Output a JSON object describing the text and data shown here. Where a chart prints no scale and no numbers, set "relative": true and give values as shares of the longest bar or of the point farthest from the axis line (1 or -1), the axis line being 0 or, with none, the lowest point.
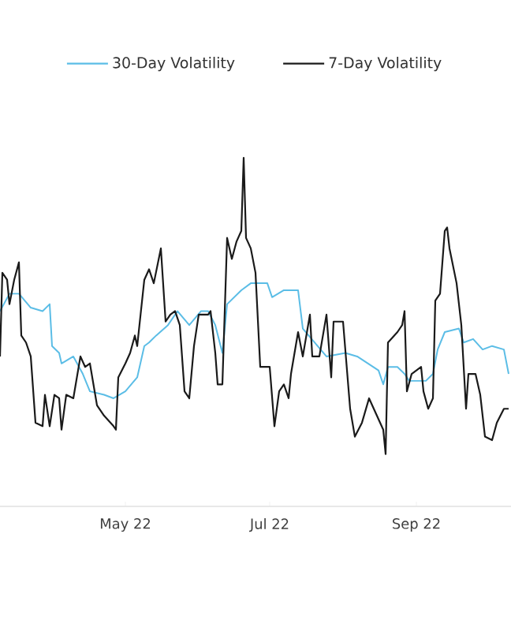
{
  "chart_data": {
    "type": "line",
    "relative": true,
    "legend": "top",
    "xlim": [
      "2022-03-09",
      "2022-10-11"
    ],
    "xticks": [
      {
        "value": "2022-05-01",
        "label": "May 22"
      },
      {
        "value": "2022-07-01",
        "label": "Jul 22"
      },
      {
        "value": "2022-09-01",
        "label": "Sep 22"
      }
    ],
    "series": [
      {
        "name": "30-Day Volatility",
        "color": "#5bbde6",
        "x": [
          "2022-03-09",
          "2022-03-13",
          "2022-03-17",
          "2022-03-22",
          "2022-03-27",
          "2022-03-30",
          "2022-03-31",
          "2022-04-03",
          "2022-04-04",
          "2022-04-09",
          "2022-04-13",
          "2022-04-16",
          "2022-04-22",
          "2022-04-26",
          "2022-05-01",
          "2022-05-06",
          "2022-05-09",
          "2022-05-11",
          "2022-05-14",
          "2022-05-19",
          "2022-05-23",
          "2022-05-28",
          "2022-06-02",
          "2022-06-05",
          "2022-06-08",
          "2022-06-11",
          "2022-06-13",
          "2022-06-19",
          "2022-06-23",
          "2022-06-30",
          "2022-07-02",
          "2022-07-07",
          "2022-07-13",
          "2022-07-15",
          "2022-07-20",
          "2022-07-25",
          "2022-08-02",
          "2022-08-07",
          "2022-08-16",
          "2022-08-18",
          "2022-08-20",
          "2022-08-24",
          "2022-08-27",
          "2022-08-29",
          "2022-09-05",
          "2022-09-08",
          "2022-09-10",
          "2022-09-13",
          "2022-09-19",
          "2022-09-21",
          "2022-09-25",
          "2022-09-29",
          "2022-10-03",
          "2022-10-08",
          "2022-10-10"
        ],
        "values": [
          0.56,
          0.61,
          0.61,
          0.57,
          0.56,
          0.58,
          0.46,
          0.44,
          0.41,
          0.43,
          0.38,
          0.33,
          0.32,
          0.31,
          0.33,
          0.37,
          0.46,
          0.47,
          0.49,
          0.52,
          0.56,
          0.52,
          0.56,
          0.56,
          0.52,
          0.44,
          0.58,
          0.62,
          0.64,
          0.64,
          0.6,
          0.62,
          0.62,
          0.51,
          0.47,
          0.43,
          0.44,
          0.43,
          0.39,
          0.35,
          0.4,
          0.4,
          0.38,
          0.36,
          0.36,
          0.38,
          0.45,
          0.5,
          0.51,
          0.47,
          0.48,
          0.45,
          0.46,
          0.45,
          0.38
        ]
      },
      {
        "name": "7-Day Volatility",
        "color": "#1a1a1a",
        "x": [
          "2022-03-09",
          "2022-03-10",
          "2022-03-12",
          "2022-03-13",
          "2022-03-15",
          "2022-03-17",
          "2022-03-18",
          "2022-03-20",
          "2022-03-22",
          "2022-03-24",
          "2022-03-27",
          "2022-03-28",
          "2022-03-30",
          "2022-04-01",
          "2022-04-03",
          "2022-04-04",
          "2022-04-06",
          "2022-04-09",
          "2022-04-12",
          "2022-04-14",
          "2022-04-16",
          "2022-04-19",
          "2022-04-22",
          "2022-04-26",
          "2022-04-27",
          "2022-04-28",
          "2022-05-01",
          "2022-05-03",
          "2022-05-05",
          "2022-05-06",
          "2022-05-09",
          "2022-05-11",
          "2022-05-13",
          "2022-05-16",
          "2022-05-18",
          "2022-05-20",
          "2022-05-22",
          "2022-05-24",
          "2022-05-26",
          "2022-05-28",
          "2022-05-30",
          "2022-06-01",
          "2022-06-05",
          "2022-06-06",
          "2022-06-08",
          "2022-06-09",
          "2022-06-11",
          "2022-06-13",
          "2022-06-15",
          "2022-06-17",
          "2022-06-19",
          "2022-06-20",
          "2022-06-21",
          "2022-06-23",
          "2022-06-25",
          "2022-06-27",
          "2022-07-01",
          "2022-07-03",
          "2022-07-05",
          "2022-07-07",
          "2022-07-09",
          "2022-07-10",
          "2022-07-13",
          "2022-07-15",
          "2022-07-18",
          "2022-07-19",
          "2022-07-22",
          "2022-07-25",
          "2022-07-27",
          "2022-07-28",
          "2022-08-01",
          "2022-08-04",
          "2022-08-06",
          "2022-08-09",
          "2022-08-12",
          "2022-08-14",
          "2022-08-18",
          "2022-08-19",
          "2022-08-20",
          "2022-08-24",
          "2022-08-26",
          "2022-08-27",
          "2022-08-28",
          "2022-08-30",
          "2022-09-03",
          "2022-09-04",
          "2022-09-06",
          "2022-09-08",
          "2022-09-09",
          "2022-09-11",
          "2022-09-13",
          "2022-09-14",
          "2022-09-15",
          "2022-09-18",
          "2022-09-20",
          "2022-09-22",
          "2022-09-23",
          "2022-09-26",
          "2022-09-28",
          "2022-09-30",
          "2022-10-03",
          "2022-10-05",
          "2022-10-08",
          "2022-10-10"
        ],
        "values": [
          0.43,
          0.67,
          0.65,
          0.58,
          0.65,
          0.7,
          0.49,
          0.47,
          0.43,
          0.24,
          0.23,
          0.32,
          0.23,
          0.32,
          0.31,
          0.22,
          0.32,
          0.31,
          0.43,
          0.4,
          0.41,
          0.29,
          0.26,
          0.23,
          0.22,
          0.37,
          0.41,
          0.44,
          0.49,
          0.46,
          0.65,
          0.68,
          0.64,
          0.74,
          0.53,
          0.55,
          0.56,
          0.52,
          0.33,
          0.31,
          0.46,
          0.55,
          0.55,
          0.56,
          0.44,
          0.35,
          0.35,
          0.77,
          0.71,
          0.76,
          0.79,
          1.0,
          0.77,
          0.74,
          0.67,
          0.4,
          0.4,
          0.23,
          0.33,
          0.35,
          0.31,
          0.38,
          0.5,
          0.43,
          0.55,
          0.43,
          0.43,
          0.55,
          0.37,
          0.53,
          0.53,
          0.28,
          0.2,
          0.24,
          0.31,
          0.28,
          0.22,
          0.15,
          0.47,
          0.5,
          0.52,
          0.56,
          0.33,
          0.38,
          0.4,
          0.33,
          0.28,
          0.31,
          0.59,
          0.61,
          0.79,
          0.8,
          0.74,
          0.64,
          0.52,
          0.28,
          0.38,
          0.38,
          0.32,
          0.2,
          0.19,
          0.24,
          0.28,
          0.28
        ]
      }
    ]
  }
}
